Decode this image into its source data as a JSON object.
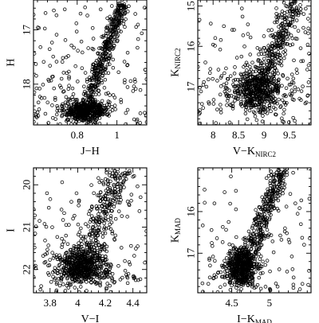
{
  "chart_data": [
    {
      "type": "scatter",
      "xlabel": "J−H",
      "ylabel": "H",
      "xlim": [
        0.58,
        1.15
      ],
      "ylim": [
        18.75,
        16.45
      ],
      "y_inverted": true,
      "xticks": [
        0.8,
        1
      ],
      "yticks": [
        17,
        18
      ],
      "features": [
        {
          "kind": "clump",
          "x": 0.84,
          "y": 18.55,
          "sx": 0.055,
          "sy": 0.12,
          "n": 520
        },
        {
          "kind": "branch",
          "x0": 0.85,
          "y0": 18.35,
          "x1": 1.03,
          "y1": 16.5,
          "spread": 0.02,
          "n": 380
        },
        {
          "kind": "field",
          "n": 180
        }
      ]
    },
    {
      "type": "scatter",
      "xlabel": "V−K",
      "xlabel_sub": "NIRC2",
      "ylabel": "K",
      "ylabel_sub": "NIRC2",
      "xlim": [
        7.7,
        9.92
      ],
      "ylim": [
        17.95,
        14.85
      ],
      "y_inverted": true,
      "xticks": [
        8,
        8.5,
        9,
        9.5
      ],
      "yticks": [
        15,
        16,
        17
      ],
      "features": [
        {
          "kind": "clump",
          "x": 8.85,
          "y": 17.25,
          "sx": 0.28,
          "sy": 0.38,
          "n": 500
        },
        {
          "kind": "branch",
          "x0": 8.75,
          "y0": 17.6,
          "x1": 9.6,
          "y1": 14.9,
          "spread": 0.12,
          "n": 300
        },
        {
          "kind": "field",
          "n": 140
        }
      ]
    },
    {
      "type": "scatter",
      "xlabel": "V−I",
      "ylabel": "I",
      "xlim": [
        3.68,
        4.5
      ],
      "ylim": [
        22.55,
        19.6
      ],
      "y_inverted": true,
      "xticks": [
        3.8,
        4,
        4.2,
        4.4
      ],
      "yticks": [
        20,
        21,
        22
      ],
      "features": [
        {
          "kind": "clump",
          "x": 4.03,
          "y": 22.05,
          "sx": 0.1,
          "sy": 0.28,
          "n": 560
        },
        {
          "kind": "branch",
          "x0": 4.0,
          "y0": 22.3,
          "x1": 4.3,
          "y1": 19.65,
          "spread": 0.055,
          "n": 320
        },
        {
          "kind": "field",
          "n": 120
        }
      ]
    },
    {
      "type": "scatter",
      "xlabel": "I−K",
      "xlabel_sub": "MAD",
      "ylabel": "K",
      "ylabel_sub": "MAD",
      "xlim": [
        4.05,
        5.55
      ],
      "ylim": [
        17.95,
        14.95
      ],
      "y_inverted": true,
      "xticks": [
        4.5,
        5
      ],
      "yticks": [
        16,
        17
      ],
      "features": [
        {
          "kind": "clump",
          "x": 4.62,
          "y": 17.45,
          "sx": 0.11,
          "sy": 0.3,
          "n": 520
        },
        {
          "kind": "branch",
          "x0": 4.6,
          "y0": 17.7,
          "x1": 5.15,
          "y1": 15.0,
          "spread": 0.065,
          "n": 330
        },
        {
          "kind": "field",
          "n": 110
        }
      ]
    }
  ]
}
